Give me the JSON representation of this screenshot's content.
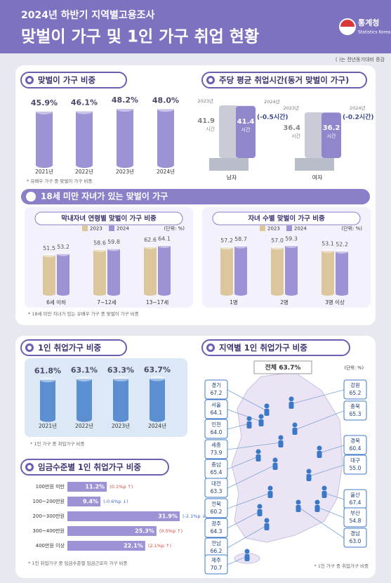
{
  "header": {
    "subtitle": "2024년 하반기 지역별고용조사",
    "title": "맞벌이 가구 및 1인 가구 취업 현황",
    "logo": "통계청",
    "logo_en": "Statistics Korea",
    "note": "( )는 전년동기대비 증감"
  },
  "section": {
    "title": "18세 미만 자녀가 있는 맞벌이 가구",
    "note": "* 18세 미만 자녀가 있는 유배우 가구 중 맞벌이 가구 비중"
  },
  "chart_data": [
    {
      "type": "bar",
      "title": "맞벌이 가구 비중",
      "categories": [
        "2021년",
        "2022년",
        "2023년",
        "2024년"
      ],
      "values": [
        45.9,
        46.1,
        48.2,
        48.0
      ],
      "value_labels": [
        "45.9%",
        "46.1%",
        "48.2%",
        "48.0%"
      ],
      "color": "#9b93d3",
      "note": "* 유배우 가구 중 맞벌이 가구 비중"
    },
    {
      "type": "hours",
      "title": "주당 평균 취업시간(동거 맞벌이 가구)",
      "categories": [
        "남자",
        "여자"
      ],
      "series": [
        {
          "name": "2023년",
          "color": "#c9cbd6",
          "values": [
            41.9,
            36.4
          ]
        },
        {
          "name": "2024년",
          "color": "#8f86cc",
          "values": [
            41.4,
            36.2
          ]
        }
      ],
      "unit": "시간",
      "annotations": [
        "(-0.5시간)",
        "(-0.2시간)"
      ]
    },
    {
      "type": "group",
      "title": "막내자녀 연령별 맞벌이 가구 비중",
      "unit_label": "(단위: %)",
      "categories": [
        "6세 이하",
        "7~12세",
        "13~17세"
      ],
      "series": [
        {
          "name": "2023",
          "color": "#dcc79c",
          "values": [
            51.5,
            58.6,
            62.6
          ]
        },
        {
          "name": "2024",
          "color": "#9d93d4",
          "values": [
            53.2,
            59.8,
            64.1
          ]
        }
      ]
    },
    {
      "type": "group",
      "title": "자녀 수별 맞벌이 가구 비중",
      "unit_label": "(단위: %)",
      "categories": [
        "1명",
        "2명",
        "3명 이상"
      ],
      "series": [
        {
          "name": "2023",
          "color": "#dcc79c",
          "values": [
            57.2,
            57.0,
            53.1
          ],
          "value_labels": [
            "57.2",
            "57.0",
            "53.1"
          ]
        },
        {
          "name": "2024",
          "color": "#9d93d4",
          "values": [
            58.7,
            59.3,
            52.2
          ],
          "value_labels": [
            "58.7",
            "59.3",
            "52.2"
          ]
        }
      ]
    },
    {
      "type": "bar",
      "title": "1인 취업가구 비중",
      "categories": [
        "2021년",
        "2022년",
        "2023년",
        "2024년"
      ],
      "values": [
        61.8,
        63.1,
        63.3,
        63.7
      ],
      "value_labels": [
        "61.8%",
        "63.1%",
        "63.3%",
        "63.7%"
      ],
      "color": "#5b8fd1",
      "note": "* 1인 가구 중 취업가구 비중"
    },
    {
      "type": "hbar",
      "title": "임금수준별 1인 취업가구 비중",
      "categories": [
        "100만원 미만",
        "100~200만원",
        "200~300만원",
        "300~400만원",
        "400만원 이상"
      ],
      "values": [
        11.2,
        9.4,
        31.9,
        25.3,
        22.1
      ],
      "value_labels": [
        "11.2%",
        "9.4%",
        "31.9%",
        "25.3%",
        "22.1%"
      ],
      "annotations": [
        "(0.1%p ↑)",
        "(-0.6%p ↓)",
        "(-2.1%p ↓)",
        "(0.5%p ↑)",
        "(2.1%p ↑)"
      ],
      "annotation_colors": [
        "#e0453a",
        "#3b6fd0",
        "#3b6fd0",
        "#e0453a",
        "#e0453a"
      ],
      "color": "#9d93d4",
      "note": "* 1인 취업가구 중 임금수준별 임금근로자 가구 비중"
    },
    {
      "type": "map",
      "title": "지역별 1인 취업가구 비중",
      "total": "전체 63.7%",
      "unit_label": "(단위: %)",
      "categories": [
        "경기",
        "서울",
        "인천",
        "세종",
        "충남",
        "대전",
        "전북",
        "광주",
        "전남",
        "제주",
        "강원",
        "충북",
        "경북",
        "대구",
        "울산",
        "부산",
        "경남"
      ],
      "values": [
        67.2,
        64.1,
        64.0,
        73.9,
        65.4,
        63.3,
        60.2,
        64.3,
        66.2,
        70.7,
        65.2,
        65.3,
        60.4,
        55.0,
        67.4,
        54.8,
        63.0
      ],
      "value_labels": [
        "67.2",
        "64.1",
        "64.0",
        "73.9",
        "65.4",
        "63.3",
        "60.2",
        "64.3",
        "66.2",
        "70.7",
        "65.2",
        "65.3",
        "60.4",
        "55.0",
        "67.4",
        "54.8",
        "63.0"
      ],
      "color": "#3c78c8",
      "note": "* 1인 가구 중 취업가구 비중"
    }
  ]
}
